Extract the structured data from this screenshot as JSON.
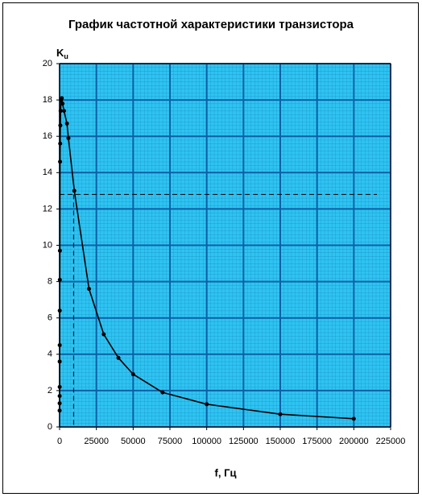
{
  "chart_data": {
    "type": "line",
    "title": "График частотной характеристики транзистора",
    "y_label": "K",
    "y_label_sub": "u",
    "x_label": "f, Гц",
    "x": [
      20,
      30,
      40,
      50,
      60,
      70,
      100,
      150,
      200,
      300,
      400,
      500,
      700,
      1000,
      1500,
      2000,
      3000,
      5000,
      6000,
      10000,
      20000,
      30000,
      40000,
      50000,
      70000,
      100000,
      150000,
      200000
    ],
    "series": [
      {
        "color": "#000000",
        "values": [
          0.9,
          1.3,
          1.7,
          2.2,
          3.6,
          4.5,
          6.4,
          8.1,
          9.7,
          14.6,
          15.6,
          16.6,
          17.4,
          18.0,
          18.1,
          17.8,
          17.4,
          16.7,
          15.9,
          13.0,
          7.6,
          5.1,
          3.8,
          2.9,
          1.9,
          1.25,
          0.7,
          0.45
        ]
      }
    ],
    "ref_x": 9500,
    "ref_y": 12.8,
    "xlim": [
      0,
      225000
    ],
    "xticks": [
      0,
      25000,
      50000,
      75000,
      100000,
      125000,
      150000,
      175000,
      200000,
      225000
    ],
    "ylim": [
      0,
      20
    ],
    "yticks": [
      0,
      2,
      4,
      6,
      8,
      10,
      12,
      14,
      16,
      18,
      20
    ],
    "grid": true
  }
}
